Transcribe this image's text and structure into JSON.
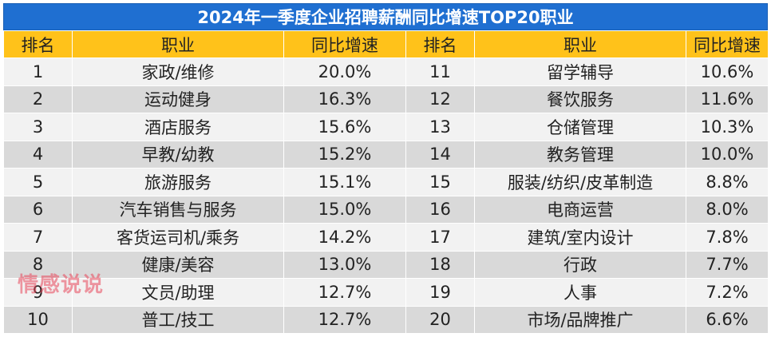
{
  "title": "2024年一季度企业招聘薪酬同比增速TOP20职业",
  "headers": [
    "排名",
    "职业",
    "同比增速",
    "排名",
    "职业",
    "同比增速"
  ],
  "rows": [
    {
      "left": {
        "rank": "1",
        "job": "家政/维修",
        "growth": "20.0%"
      },
      "right": {
        "rank": "11",
        "job": "留学辅导",
        "growth": "10.6%"
      }
    },
    {
      "left": {
        "rank": "2",
        "job": "运动健身",
        "growth": "16.3%"
      },
      "right": {
        "rank": "12",
        "job": "餐饮服务",
        "growth": "11.6%"
      }
    },
    {
      "left": {
        "rank": "3",
        "job": "酒店服务",
        "growth": "15.6%"
      },
      "right": {
        "rank": "13",
        "job": "仓储管理",
        "growth": "10.3%"
      }
    },
    {
      "left": {
        "rank": "4",
        "job": "早教/幼教",
        "growth": "15.2%"
      },
      "right": {
        "rank": "14",
        "job": "教务管理",
        "growth": "10.0%"
      }
    },
    {
      "left": {
        "rank": "5",
        "job": "旅游服务",
        "growth": "15.1%"
      },
      "right": {
        "rank": "15",
        "job": "服装/纺织/皮革制造",
        "growth": "8.8%"
      }
    },
    {
      "left": {
        "rank": "6",
        "job": "汽车销售与服务",
        "growth": "15.0%"
      },
      "right": {
        "rank": "16",
        "job": "电商运营",
        "growth": "8.0%"
      }
    },
    {
      "left": {
        "rank": "7",
        "job": "客货运司机/乘务",
        "growth": "14.2%"
      },
      "right": {
        "rank": "17",
        "job": "建筑/室内设计",
        "growth": "7.8%"
      }
    },
    {
      "left": {
        "rank": "8",
        "job": "健康/美容",
        "growth": "13.0%"
      },
      "right": {
        "rank": "18",
        "job": "行政",
        "growth": "7.7%"
      }
    },
    {
      "left": {
        "rank": "9",
        "job": "文员/助理",
        "growth": "12.7%"
      },
      "right": {
        "rank": "19",
        "job": "人事",
        "growth": "7.2%"
      }
    },
    {
      "left": {
        "rank": "10",
        "job": "普工/技工",
        "growth": "12.7%"
      },
      "right": {
        "rank": "20",
        "job": "市场/品牌推广",
        "growth": "6.6%"
      }
    }
  ],
  "watermark": "情感说说",
  "colors": {
    "title_bg": "#1f6fd1",
    "header_bg": "#ffc21a",
    "row_light": "#f2f2f2",
    "row_dark": "#d9d9d9",
    "watermark": "#e8465a"
  }
}
